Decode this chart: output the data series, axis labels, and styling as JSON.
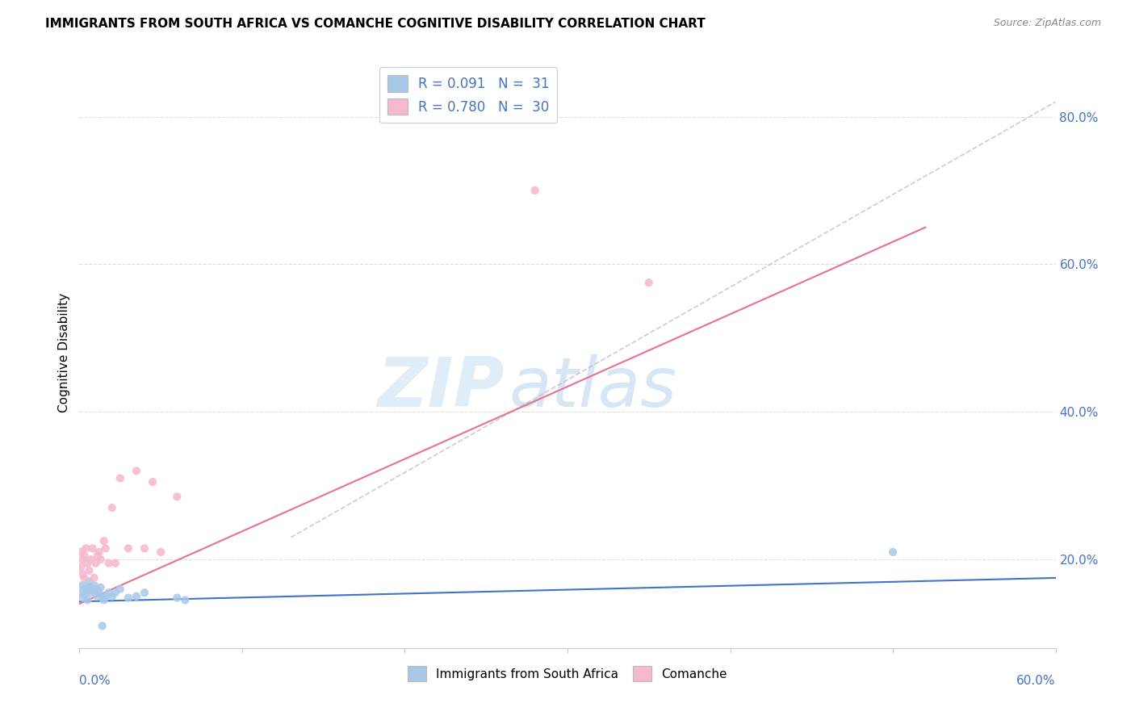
{
  "title": "IMMIGRANTS FROM SOUTH AFRICA VS COMANCHE COGNITIVE DISABILITY CORRELATION CHART",
  "source": "Source: ZipAtlas.com",
  "ylabel": "Cognitive Disability",
  "xlim": [
    0.0,
    0.6
  ],
  "ylim": [
    0.08,
    0.88
  ],
  "y_ticks": [
    0.2,
    0.4,
    0.6,
    0.8
  ],
  "y_tick_labels": [
    "20.0%",
    "40.0%",
    "60.0%",
    "80.0%"
  ],
  "legend_entry1": "R = 0.091   N =  31",
  "legend_entry2": "R = 0.780   N =  30",
  "color_blue": "#a8c8e8",
  "color_pink": "#f5b8cc",
  "line_blue": "#4472c4",
  "line_pink": "#e87090",
  "blue_line_x": [
    0.0,
    0.6
  ],
  "blue_line_y": [
    0.143,
    0.175
  ],
  "pink_line_x": [
    0.0,
    0.52
  ],
  "pink_line_y": [
    0.14,
    0.65
  ],
  "dash_line_x": [
    0.13,
    0.6
  ],
  "dash_line_y": [
    0.23,
    0.82
  ],
  "scatter_blue_x": [
    0.001,
    0.002,
    0.002,
    0.003,
    0.003,
    0.004,
    0.005,
    0.006,
    0.006,
    0.007,
    0.007,
    0.008,
    0.009,
    0.01,
    0.011,
    0.012,
    0.013,
    0.014,
    0.015,
    0.016,
    0.018,
    0.02,
    0.022,
    0.025,
    0.03,
    0.035,
    0.04,
    0.06,
    0.065,
    0.5,
    0.014
  ],
  "scatter_blue_y": [
    0.155,
    0.148,
    0.165,
    0.152,
    0.16,
    0.158,
    0.145,
    0.162,
    0.17,
    0.155,
    0.16,
    0.158,
    0.165,
    0.16,
    0.15,
    0.155,
    0.162,
    0.148,
    0.145,
    0.15,
    0.155,
    0.15,
    0.155,
    0.16,
    0.148,
    0.15,
    0.155,
    0.148,
    0.145,
    0.21,
    0.11
  ],
  "scatter_pink_x": [
    0.001,
    0.001,
    0.002,
    0.002,
    0.003,
    0.003,
    0.004,
    0.005,
    0.006,
    0.007,
    0.008,
    0.009,
    0.01,
    0.011,
    0.012,
    0.013,
    0.015,
    0.016,
    0.018,
    0.02,
    0.022,
    0.025,
    0.03,
    0.035,
    0.04,
    0.045,
    0.05,
    0.06,
    0.28,
    0.35
  ],
  "scatter_pink_y": [
    0.19,
    0.21,
    0.18,
    0.2,
    0.175,
    0.205,
    0.215,
    0.195,
    0.185,
    0.2,
    0.215,
    0.175,
    0.195,
    0.205,
    0.21,
    0.2,
    0.225,
    0.215,
    0.195,
    0.27,
    0.195,
    0.31,
    0.215,
    0.32,
    0.215,
    0.305,
    0.21,
    0.285,
    0.7,
    0.575
  ],
  "watermark_zip": "ZIP",
  "watermark_atlas": "atlas",
  "background_color": "#ffffff",
  "grid_color": "#dddddd"
}
